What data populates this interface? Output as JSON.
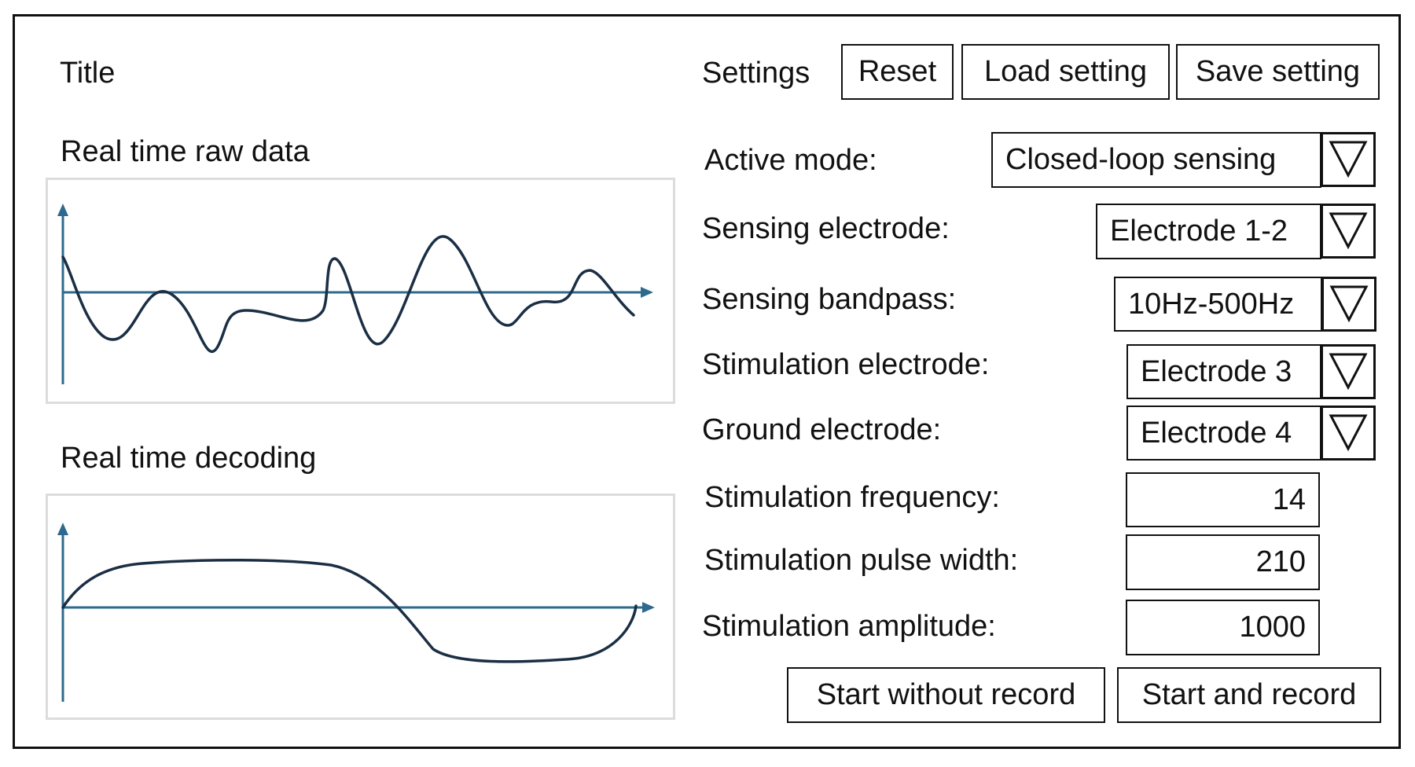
{
  "title": "Title",
  "left": {
    "raw_label": "Real time raw data",
    "decoding_label": "Real time decoding"
  },
  "settings": {
    "label": "Settings",
    "reset_label": "Reset",
    "load_label": "Load setting",
    "save_label": "Save setting"
  },
  "fields": {
    "active_mode": {
      "label": "Active mode:",
      "value": "Closed-loop sensing"
    },
    "sensing_electrode": {
      "label": "Sensing electrode:",
      "value": "Electrode 1-2"
    },
    "sensing_bandpass": {
      "label": "Sensing bandpass:",
      "value": "10Hz-500Hz"
    },
    "stimulation_electrode": {
      "label": "Stimulation electrode:",
      "value": "Electrode 3"
    },
    "ground_electrode": {
      "label": "Ground electrode:",
      "value": "Electrode 4"
    },
    "stimulation_frequency": {
      "label": "Stimulation frequency:",
      "value": "14"
    },
    "stimulation_pulse_width": {
      "label": "Stimulation pulse width:",
      "value": "210"
    },
    "stimulation_amplitude": {
      "label": "Stimulation amplitude:",
      "value": "1000"
    }
  },
  "actions": {
    "start_without_record": "Start without record",
    "start_and_record": "Start and record"
  },
  "colors": {
    "axis": "#2e6a8e",
    "trace": "#1b2f44",
    "plot_border": "#dcdcdc"
  },
  "icons": {
    "dropdown": "triangle-down-icon",
    "axis_arrow": "arrow-icon"
  }
}
